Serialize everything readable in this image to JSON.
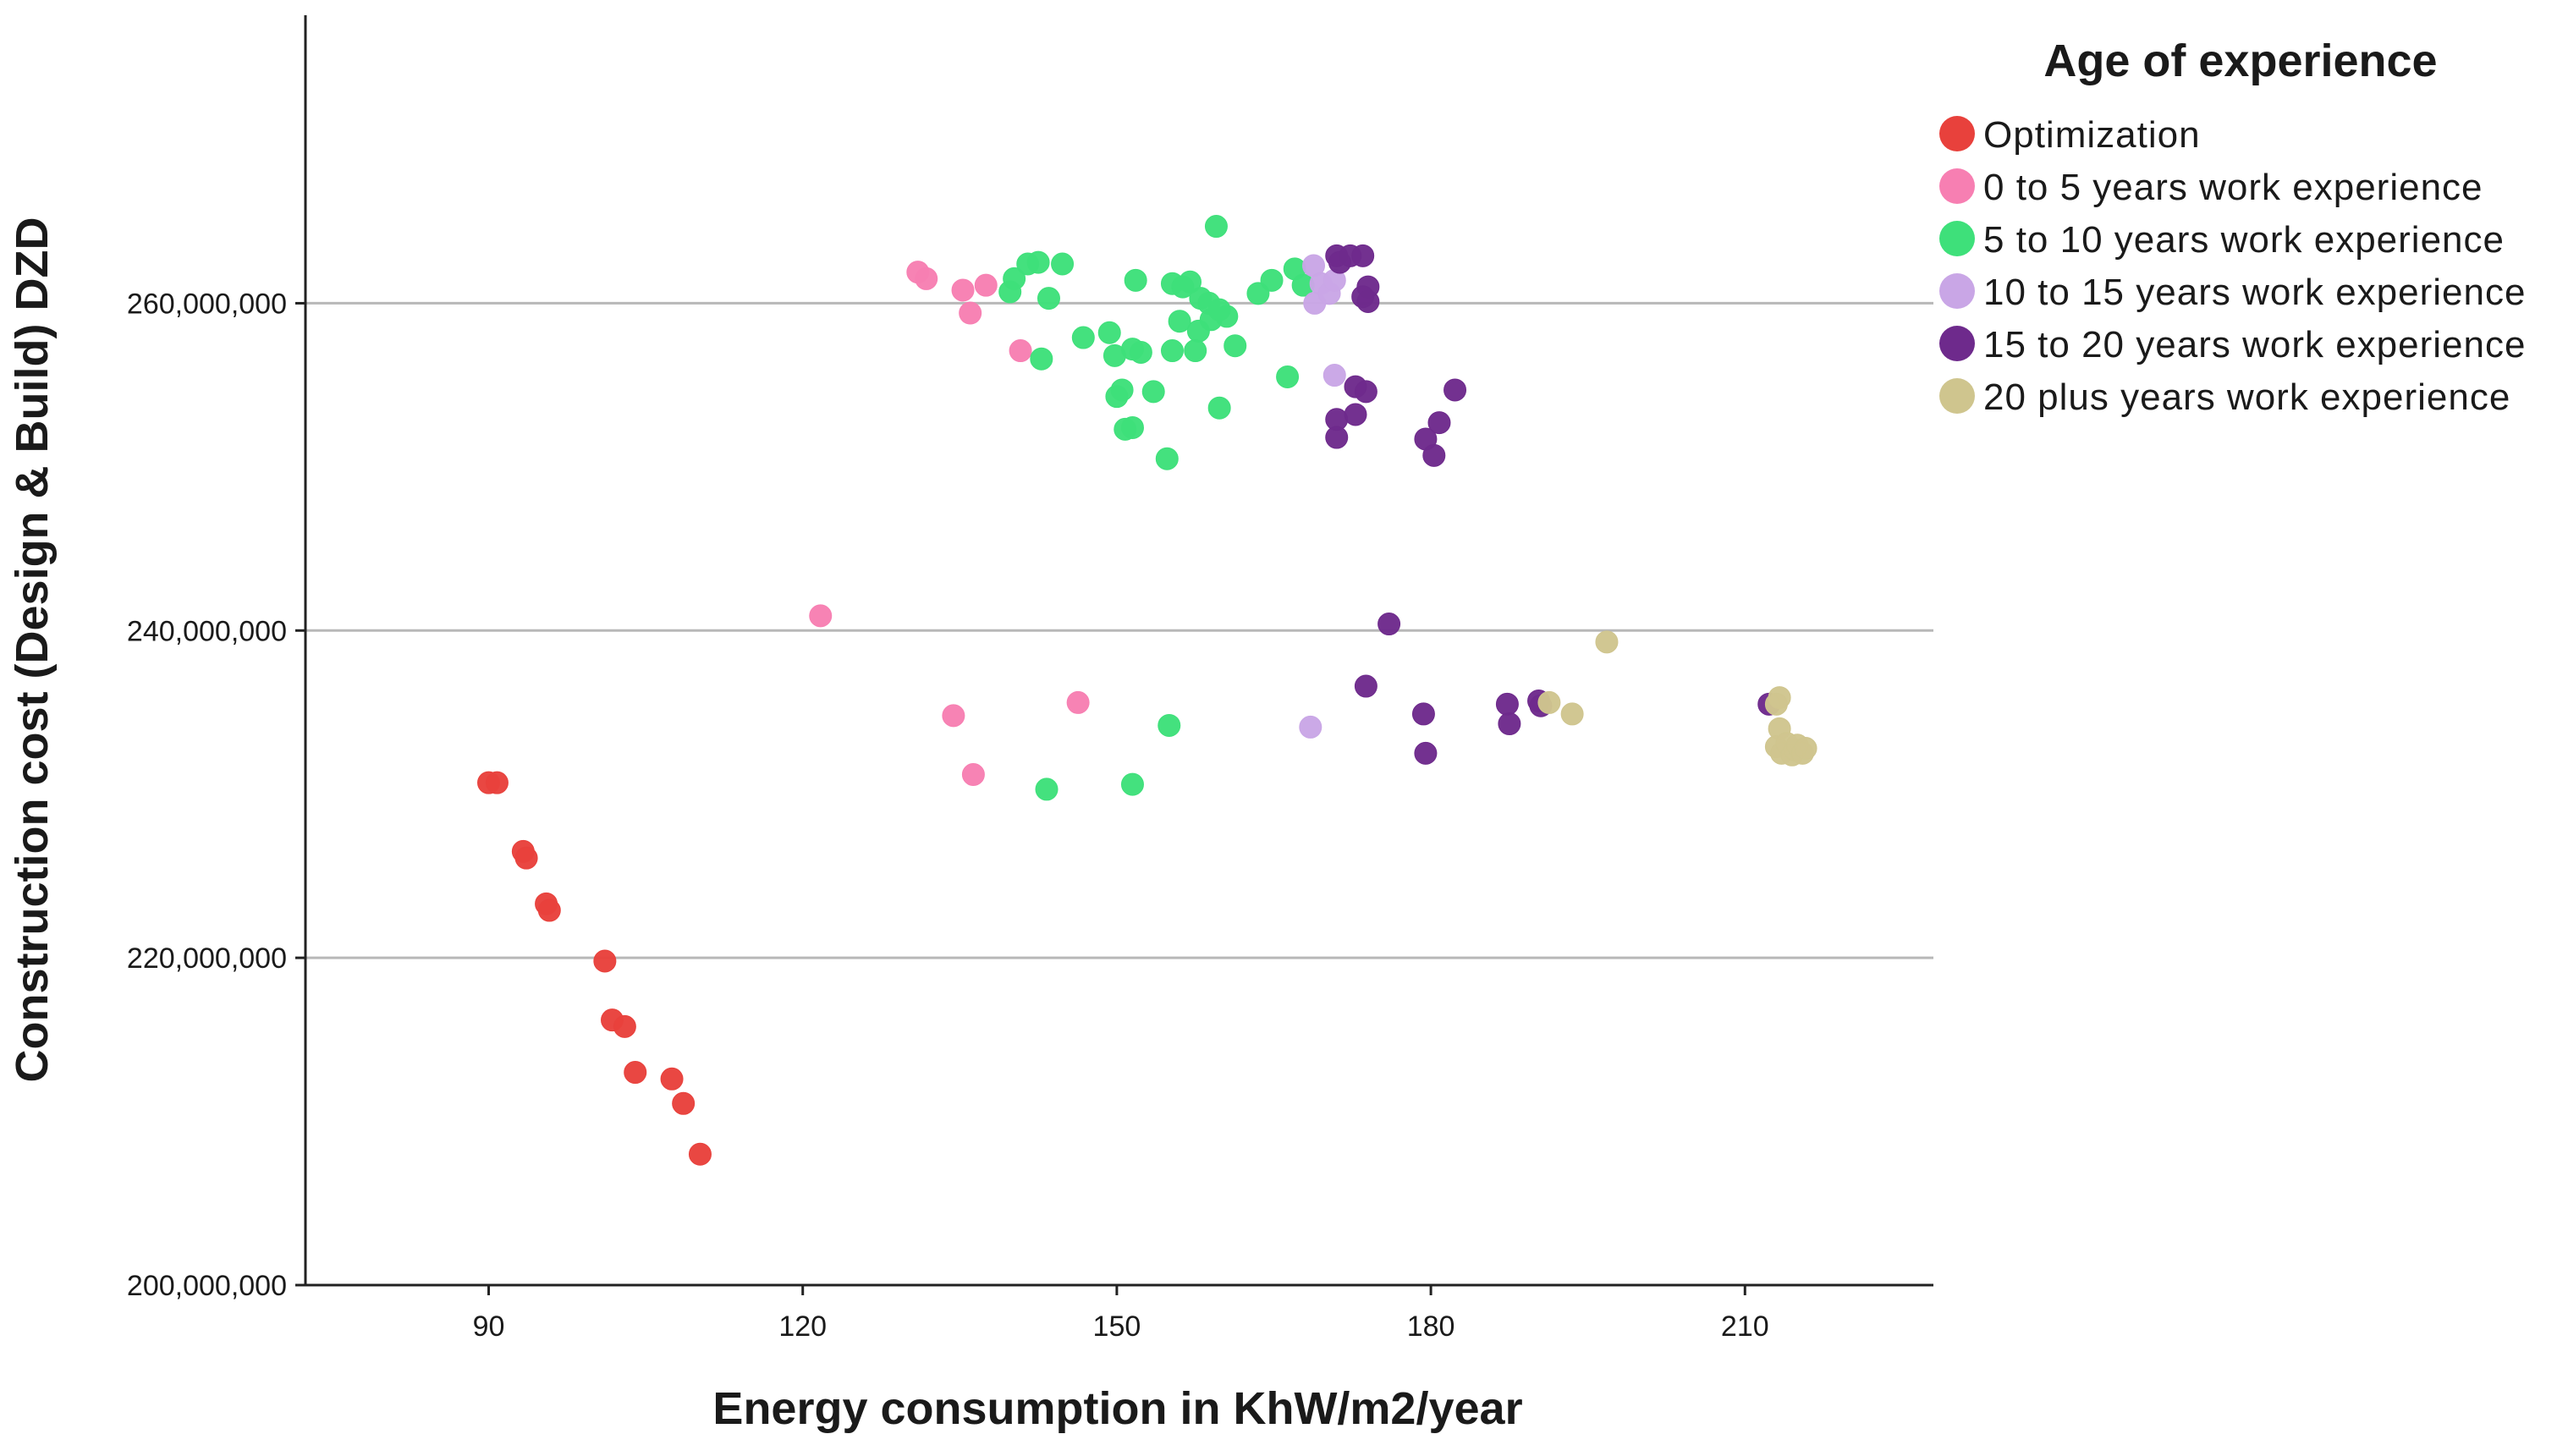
{
  "chart_data": {
    "type": "scatter",
    "title": "",
    "xlabel": "Energy consumption in KhW/m2/year",
    "ylabel": "Construction cost (Design & Build) DZD",
    "xlim": [
      72.5,
      228
    ],
    "ylim": [
      200000000,
      277600000
    ],
    "x_ticks": [
      90,
      120,
      150,
      180,
      210
    ],
    "y_ticks": [
      200000000,
      220000000,
      240000000,
      260000000
    ],
    "x_tick_labels": [
      "90",
      "120",
      "150",
      "180",
      "210"
    ],
    "y_tick_labels": [
      "200,000,000",
      "220,000,000",
      "240,000,000",
      "260,000,000"
    ],
    "gridlines": "horizontal",
    "legend": {
      "title": "Age of experience",
      "position": "right"
    },
    "series": [
      {
        "name": "Optimization",
        "color": "#e8413c",
        "points": [
          [
            90.0,
            230.7
          ],
          [
            90.8,
            230.7
          ],
          [
            93.3,
            226.5
          ],
          [
            93.6,
            226.1
          ],
          [
            95.5,
            223.3
          ],
          [
            95.8,
            222.9
          ],
          [
            101.1,
            219.8
          ],
          [
            101.8,
            216.2
          ],
          [
            103.0,
            215.8
          ],
          [
            104.0,
            213.0
          ],
          [
            107.5,
            212.6
          ],
          [
            108.6,
            211.1
          ],
          [
            110.2,
            208.0
          ]
        ]
      },
      {
        "name": "0 to 5 years work experience",
        "color": "#f77fb2",
        "points": [
          [
            121.7,
            240.9
          ],
          [
            131.0,
            261.9
          ],
          [
            131.8,
            261.5
          ],
          [
            135.3,
            260.8
          ],
          [
            136.0,
            259.4
          ],
          [
            137.5,
            261.1
          ],
          [
            140.8,
            257.1
          ],
          [
            134.4,
            234.8
          ],
          [
            136.3,
            231.2
          ],
          [
            146.3,
            235.6
          ]
        ]
      },
      {
        "name": "5 to 10 years work experience",
        "color": "#3ee07a",
        "points": [
          [
            139.8,
            260.7
          ],
          [
            140.2,
            261.5
          ],
          [
            141.5,
            262.4
          ],
          [
            142.5,
            262.5
          ],
          [
            143.5,
            260.3
          ],
          [
            144.8,
            262.4
          ],
          [
            142.8,
            256.6
          ],
          [
            146.8,
            257.9
          ],
          [
            149.3,
            258.2
          ],
          [
            149.8,
            256.8
          ],
          [
            150.0,
            254.3
          ],
          [
            150.5,
            254.7
          ],
          [
            150.8,
            252.3
          ],
          [
            151.5,
            252.4
          ],
          [
            151.5,
            257.2
          ],
          [
            151.8,
            261.4
          ],
          [
            152.3,
            257.0
          ],
          [
            153.5,
            254.6
          ],
          [
            154.8,
            250.5
          ],
          [
            155.3,
            261.2
          ],
          [
            155.3,
            257.1
          ],
          [
            156.0,
            258.9
          ],
          [
            156.3,
            261.0
          ],
          [
            157.0,
            261.3
          ],
          [
            157.5,
            257.1
          ],
          [
            157.8,
            258.3
          ],
          [
            158.0,
            260.3
          ],
          [
            158.8,
            260.0
          ],
          [
            159.0,
            259.0
          ],
          [
            159.5,
            264.7
          ],
          [
            159.8,
            259.6
          ],
          [
            159.8,
            253.6
          ],
          [
            160.5,
            259.2
          ],
          [
            161.3,
            257.4
          ],
          [
            163.5,
            260.6
          ],
          [
            164.8,
            261.4
          ],
          [
            166.3,
            255.5
          ],
          [
            167.0,
            262.1
          ],
          [
            167.8,
            261.1
          ],
          [
            155.0,
            234.2
          ],
          [
            143.3,
            230.3
          ],
          [
            151.5,
            230.6
          ]
        ]
      },
      {
        "name": "10 to 15 years work experience",
        "color": "#c9a6e6",
        "points": [
          [
            168.8,
            262.3
          ],
          [
            168.9,
            260.0
          ],
          [
            169.5,
            261.2
          ],
          [
            170.3,
            260.6
          ],
          [
            170.8,
            261.4
          ],
          [
            170.8,
            255.6
          ],
          [
            168.5,
            234.1
          ]
        ]
      },
      {
        "name": "15 to 20 years work experience",
        "color": "#6e2a8c",
        "points": [
          [
            171.0,
            262.9
          ],
          [
            171.3,
            262.5
          ],
          [
            172.3,
            262.9
          ],
          [
            173.5,
            262.9
          ],
          [
            173.5,
            260.4
          ],
          [
            174.0,
            261.0
          ],
          [
            174.0,
            260.1
          ],
          [
            172.8,
            254.9
          ],
          [
            173.8,
            254.6
          ],
          [
            171.0,
            252.9
          ],
          [
            171.0,
            251.8
          ],
          [
            172.8,
            253.2
          ],
          [
            179.5,
            251.7
          ],
          [
            180.8,
            252.7
          ],
          [
            180.3,
            250.7
          ],
          [
            182.3,
            254.7
          ],
          [
            176.0,
            240.4
          ],
          [
            173.8,
            236.6
          ],
          [
            179.3,
            234.9
          ],
          [
            179.5,
            232.5
          ],
          [
            187.3,
            235.5
          ],
          [
            187.5,
            234.3
          ],
          [
            190.3,
            235.7
          ],
          [
            190.5,
            235.4
          ],
          [
            212.3,
            235.5
          ]
        ]
      },
      {
        "name": "20 plus years work experience",
        "color": "#cfc58e",
        "points": [
          [
            196.8,
            239.3
          ],
          [
            191.3,
            235.6
          ],
          [
            193.5,
            234.9
          ],
          [
            213.3,
            235.9
          ],
          [
            213.0,
            235.5
          ],
          [
            213.3,
            234.0
          ],
          [
            213.0,
            232.9
          ],
          [
            213.5,
            232.5
          ],
          [
            214.0,
            233.1
          ],
          [
            214.5,
            232.4
          ],
          [
            214.8,
            232.7
          ],
          [
            215.0,
            233.0
          ],
          [
            215.5,
            232.5
          ],
          [
            215.8,
            232.8
          ]
        ]
      }
    ]
  }
}
